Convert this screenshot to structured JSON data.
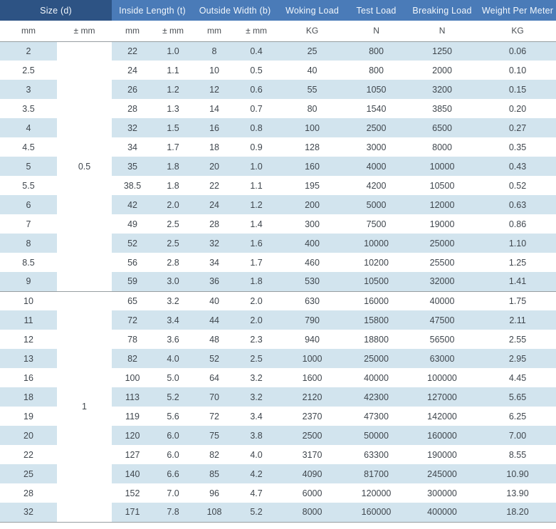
{
  "colors": {
    "header_dark": "#2d5384",
    "header_mid": "#4a7bb8",
    "row_stripe": "#d2e4ee",
    "divider": "#979ea1",
    "text_dark": "#3f464d",
    "header_text": "#f2f7fc"
  },
  "chart_data": {
    "type": "table",
    "header_groups": [
      {
        "label": "Size (d)",
        "span": 2
      },
      {
        "label": "Inside Length (t)",
        "span": 2
      },
      {
        "label": "Outside Width (b)",
        "span": 2
      },
      {
        "label": "Woking Load",
        "span": 1
      },
      {
        "label": "Test Load",
        "span": 1
      },
      {
        "label": "Breaking Load",
        "span": 1
      },
      {
        "label": "Weight Per Meter",
        "span": 1
      }
    ],
    "units": [
      "mm",
      "± mm",
      "mm",
      "± mm",
      "mm",
      "± mm",
      "KG",
      "N",
      "N",
      "KG"
    ],
    "tolerance_groups": [
      {
        "value": "0.5",
        "row_span": 13
      },
      {
        "value": "1",
        "row_span": 12
      }
    ],
    "rows": [
      [
        "2",
        "22",
        "1.0",
        "8",
        "0.4",
        "25",
        "800",
        "1250",
        "0.06"
      ],
      [
        "2.5",
        "24",
        "1.1",
        "10",
        "0.5",
        "40",
        "800",
        "2000",
        "0.10"
      ],
      [
        "3",
        "26",
        "1.2",
        "12",
        "0.6",
        "55",
        "1050",
        "3200",
        "0.15"
      ],
      [
        "3.5",
        "28",
        "1.3",
        "14",
        "0.7",
        "80",
        "1540",
        "3850",
        "0.20"
      ],
      [
        "4",
        "32",
        "1.5",
        "16",
        "0.8",
        "100",
        "2500",
        "6500",
        "0.27"
      ],
      [
        "4.5",
        "34",
        "1.7",
        "18",
        "0.9",
        "128",
        "3000",
        "8000",
        "0.35"
      ],
      [
        "5",
        "35",
        "1.8",
        "20",
        "1.0",
        "160",
        "4000",
        "10000",
        "0.43"
      ],
      [
        "5.5",
        "38.5",
        "1.8",
        "22",
        "1.1",
        "195",
        "4200",
        "10500",
        "0.52"
      ],
      [
        "6",
        "42",
        "2.0",
        "24",
        "1.2",
        "200",
        "5000",
        "12000",
        "0.63"
      ],
      [
        "7",
        "49",
        "2.5",
        "28",
        "1.4",
        "300",
        "7500",
        "19000",
        "0.86"
      ],
      [
        "8",
        "52",
        "2.5",
        "32",
        "1.6",
        "400",
        "10000",
        "25000",
        "1.10"
      ],
      [
        "8.5",
        "56",
        "2.8",
        "34",
        "1.7",
        "460",
        "10200",
        "25500",
        "1.25"
      ],
      [
        "9",
        "59",
        "3.0",
        "36",
        "1.8",
        "530",
        "10500",
        "32000",
        "1.41"
      ],
      [
        "10",
        "65",
        "3.2",
        "40",
        "2.0",
        "630",
        "16000",
        "40000",
        "1.75"
      ],
      [
        "11",
        "72",
        "3.4",
        "44",
        "2.0",
        "790",
        "15800",
        "47500",
        "2.11"
      ],
      [
        "12",
        "78",
        "3.6",
        "48",
        "2.3",
        "940",
        "18800",
        "56500",
        "2.55"
      ],
      [
        "13",
        "82",
        "4.0",
        "52",
        "2.5",
        "1000",
        "25000",
        "63000",
        "2.95"
      ],
      [
        "16",
        "100",
        "5.0",
        "64",
        "3.2",
        "1600",
        "40000",
        "100000",
        "4.45"
      ],
      [
        "18",
        "113",
        "5.2",
        "70",
        "3.2",
        "2120",
        "42300",
        "127000",
        "5.65"
      ],
      [
        "19",
        "119",
        "5.6",
        "72",
        "3.4",
        "2370",
        "47300",
        "142000",
        "6.25"
      ],
      [
        "20",
        "120",
        "6.0",
        "75",
        "3.8",
        "2500",
        "50000",
        "160000",
        "7.00"
      ],
      [
        "22",
        "127",
        "6.0",
        "82",
        "4.0",
        "3170",
        "63300",
        "190000",
        "8.55"
      ],
      [
        "25",
        "140",
        "6.6",
        "85",
        "4.2",
        "4090",
        "81700",
        "245000",
        "10.90"
      ],
      [
        "28",
        "152",
        "7.0",
        "96",
        "4.7",
        "6000",
        "120000",
        "300000",
        "13.90"
      ],
      [
        "32",
        "171",
        "7.8",
        "108",
        "5.2",
        "8000",
        "160000",
        "400000",
        "18.20"
      ]
    ]
  }
}
